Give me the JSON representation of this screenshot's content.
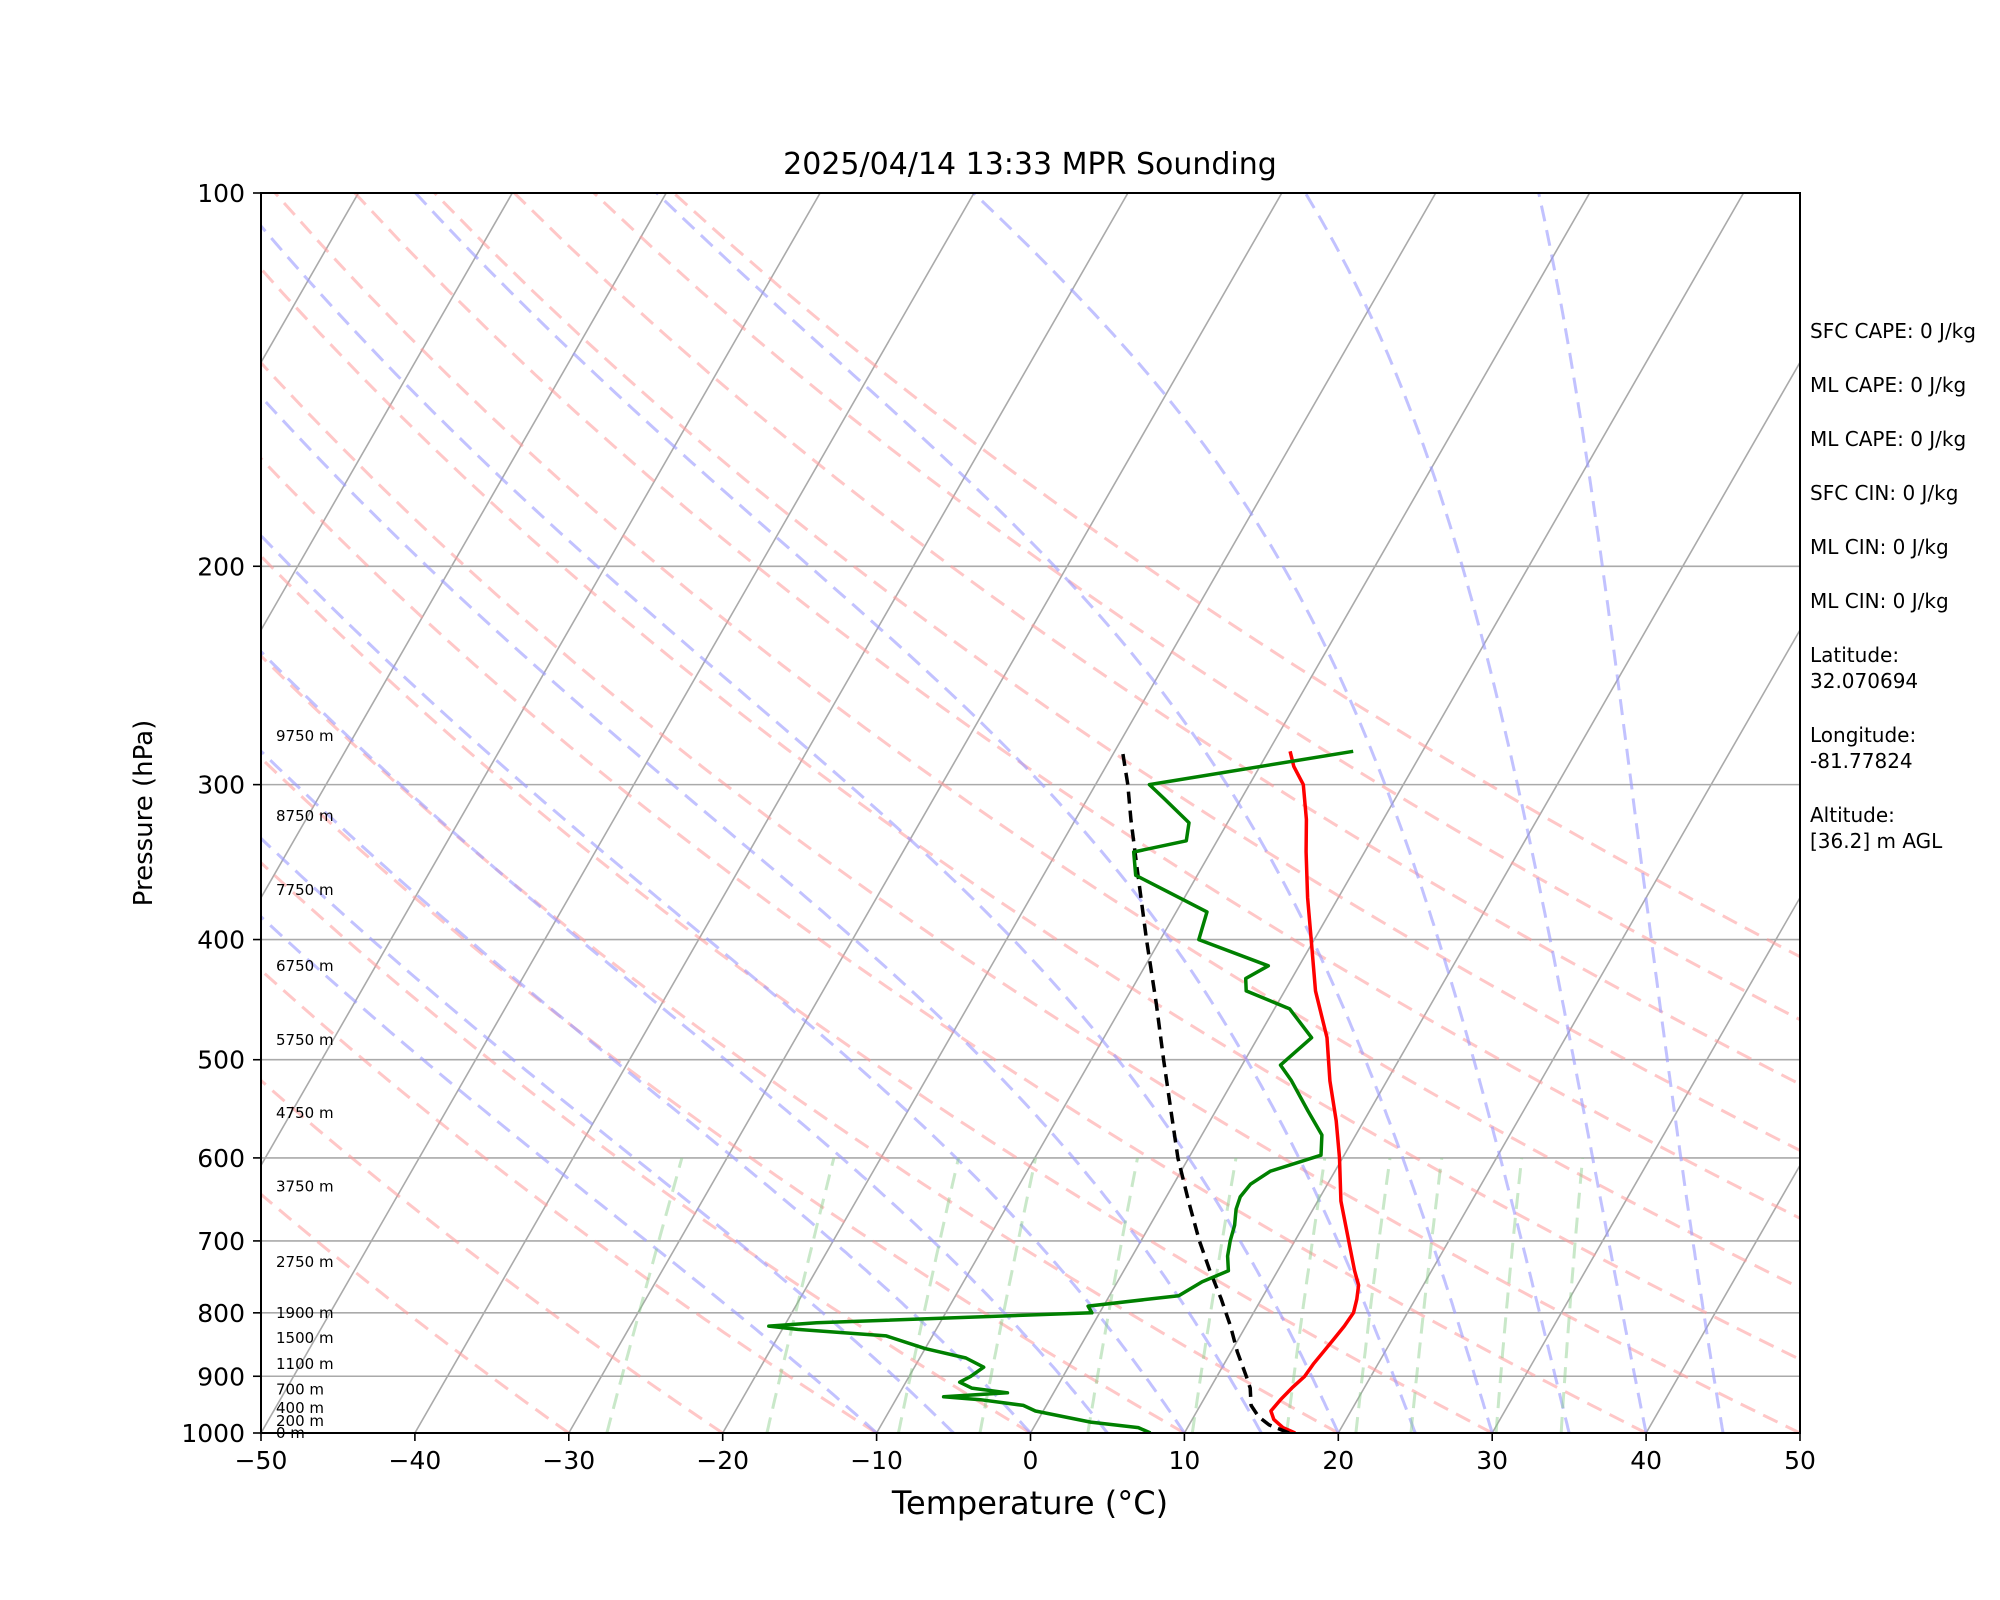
{
  "chart_data": {
    "type": "line",
    "title": "2025/04/14 13:33 MPR Sounding",
    "xlabel": "Temperature (°C)",
    "ylabel": "Pressure (hPa)",
    "xlim": [
      -50,
      50
    ],
    "ylim": [
      1000,
      100
    ],
    "y_scale": "log",
    "grid": true,
    "x_ticks": [
      "−50",
      "−40",
      "−30",
      "−20",
      "−10",
      "0",
      "10",
      "20",
      "30",
      "40",
      "50"
    ],
    "y_ticks": [
      "100",
      "200",
      "300",
      "400",
      "500",
      "600",
      "700",
      "800",
      "900",
      "1000"
    ],
    "series": [
      {
        "color": "#ff0000",
        "points": [
          [
            1000,
            17.2
          ],
          [
            990,
            16.2
          ],
          [
            975,
            15.3
          ],
          [
            960,
            14.8
          ],
          [
            940,
            15.0
          ],
          [
            920,
            15.3
          ],
          [
            900,
            15.7
          ],
          [
            880,
            15.8
          ],
          [
            860,
            16.0
          ],
          [
            840,
            16.2
          ],
          [
            820,
            16.4
          ],
          [
            800,
            16.5
          ],
          [
            780,
            16.2
          ],
          [
            760,
            15.8
          ],
          [
            740,
            15.0
          ],
          [
            700,
            13.5
          ],
          [
            650,
            11.5
          ],
          [
            600,
            9.8
          ],
          [
            560,
            8.2
          ],
          [
            520,
            6.3
          ],
          [
            480,
            4.5
          ],
          [
            440,
            2.0
          ],
          [
            400,
            -0.2
          ],
          [
            370,
            -2.0
          ],
          [
            340,
            -3.8
          ],
          [
            320,
            -5.0
          ],
          [
            300,
            -6.5
          ],
          [
            290,
            -7.8
          ],
          [
            282,
            -8.6
          ]
        ]
      },
      {
        "color": "#000000",
        "points": [
          [
            1000,
            16.8
          ],
          [
            985,
            15.2
          ],
          [
            970,
            14.2
          ],
          [
            950,
            13.3
          ],
          [
            920,
            12.6
          ],
          [
            900,
            11.9
          ],
          [
            860,
            10.4
          ],
          [
            820,
            9.0
          ],
          [
            780,
            7.4
          ],
          [
            740,
            5.6
          ],
          [
            700,
            3.8
          ],
          [
            650,
            1.6
          ],
          [
            600,
            -0.7
          ],
          [
            550,
            -2.9
          ],
          [
            500,
            -5.3
          ],
          [
            450,
            -7.9
          ],
          [
            400,
            -10.9
          ],
          [
            350,
            -14.2
          ],
          [
            320,
            -16.4
          ],
          [
            300,
            -17.9
          ],
          [
            283,
            -19.4
          ]
        ]
      },
      {
        "color": "#008000",
        "points": [
          [
            1000,
            7.8
          ],
          [
            990,
            6.8
          ],
          [
            980,
            3.5
          ],
          [
            960,
            -0.5
          ],
          [
            950,
            -1.5
          ],
          [
            940,
            -4.5
          ],
          [
            935,
            -7.0
          ],
          [
            928,
            -3.0
          ],
          [
            920,
            -5.5
          ],
          [
            910,
            -6.5
          ],
          [
            900,
            -6.0
          ],
          [
            885,
            -5.5
          ],
          [
            870,
            -7.0
          ],
          [
            855,
            -10.0
          ],
          [
            835,
            -13.0
          ],
          [
            825,
            -19.0
          ],
          [
            820,
            -21.0
          ],
          [
            815,
            -18.0
          ],
          [
            800,
            -0.5
          ],
          [
            790,
            -1.0
          ],
          [
            775,
            4.5
          ],
          [
            755,
            5.5
          ],
          [
            740,
            6.8
          ],
          [
            720,
            6.2
          ],
          [
            700,
            5.8
          ],
          [
            680,
            5.5
          ],
          [
            660,
            5.0
          ],
          [
            645,
            4.8
          ],
          [
            630,
            5.0
          ],
          [
            615,
            5.8
          ],
          [
            597,
            8.5
          ],
          [
            575,
            7.8
          ],
          [
            550,
            6.0
          ],
          [
            520,
            3.8
          ],
          [
            505,
            2.5
          ],
          [
            480,
            3.5
          ],
          [
            455,
            1.0
          ],
          [
            440,
            -2.5
          ],
          [
            430,
            -3.0
          ],
          [
            420,
            -2.0
          ],
          [
            400,
            -7.5
          ],
          [
            380,
            -8.0
          ],
          [
            355,
            -14.0
          ],
          [
            340,
            -15.0
          ],
          [
            333,
            -12.0
          ],
          [
            322,
            -12.5
          ],
          [
            308,
            -15.0
          ],
          [
            300,
            -16.5
          ],
          [
            282,
            -4.5
          ]
        ]
      }
    ],
    "height_labels": [
      {
        "pressure": 1000,
        "text": "0 m"
      },
      {
        "pressure": 978,
        "text": "200 m"
      },
      {
        "pressure": 955,
        "text": "400 m"
      },
      {
        "pressure": 922,
        "text": "700 m"
      },
      {
        "pressure": 880,
        "text": "1100 m"
      },
      {
        "pressure": 838,
        "text": "1500 m"
      },
      {
        "pressure": 800,
        "text": "1900 m"
      },
      {
        "pressure": 728,
        "text": "2750 m"
      },
      {
        "pressure": 633,
        "text": "3750 m"
      },
      {
        "pressure": 552,
        "text": "4750 m"
      },
      {
        "pressure": 482,
        "text": "5750 m"
      },
      {
        "pressure": 420,
        "text": "6750 m"
      },
      {
        "pressure": 365,
        "text": "7750 m"
      },
      {
        "pressure": 318,
        "text": "8750 m"
      },
      {
        "pressure": 274,
        "text": "9750 m"
      }
    ],
    "line_colors": {
      "isotherm": "#aaaaaa",
      "isobar": "#aaaaaa",
      "dry_adiabat": "#ff9999",
      "moist_adiabat": "#9999ff",
      "mixing_ratio": "#88cc88"
    }
  },
  "side_panel": [
    "SFC CAPE: 0 J/kg",
    "ML CAPE: 0 J/kg",
    "ML CAPE: 0 J/kg",
    "SFC CIN: 0 J/kg",
    "ML CIN: 0 J/kg",
    "ML CIN: 0 J/kg",
    "Latitude:\n32.070694",
    "Longitude:\n-81.77824",
    "Altitude:\n[36.2] m AGL"
  ]
}
